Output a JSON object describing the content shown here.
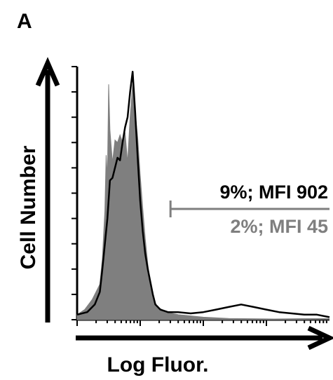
{
  "chart_data": {
    "type": "area",
    "panel_label": "A",
    "xlabel": "Log Fluor.",
    "ylabel": "Cell Number",
    "x_scale": "log",
    "colors": {
      "control_fill": "#7f7f7f",
      "gate_black": "#000000",
      "gate_gray": "#7f7f7f"
    },
    "series": [
      {
        "style": "filled-gray",
        "points": [
          [
            0.0,
            0.02
          ],
          [
            0.03,
            0.04
          ],
          [
            0.06,
            0.08
          ],
          [
            0.09,
            0.14
          ],
          [
            0.1,
            0.24
          ],
          [
            0.11,
            0.43
          ],
          [
            0.115,
            0.65
          ],
          [
            0.12,
            0.56
          ],
          [
            0.125,
            0.93
          ],
          [
            0.13,
            0.75
          ],
          [
            0.14,
            0.62
          ],
          [
            0.15,
            0.71
          ],
          [
            0.16,
            0.7
          ],
          [
            0.17,
            0.73
          ],
          [
            0.18,
            0.7
          ],
          [
            0.19,
            0.74
          ],
          [
            0.2,
            0.62
          ],
          [
            0.21,
            0.8
          ],
          [
            0.22,
            0.93
          ],
          [
            0.23,
            0.82
          ],
          [
            0.24,
            0.72
          ],
          [
            0.25,
            0.57
          ],
          [
            0.26,
            0.44
          ],
          [
            0.27,
            0.32
          ],
          [
            0.28,
            0.22
          ],
          [
            0.29,
            0.14
          ],
          [
            0.3,
            0.08
          ],
          [
            0.32,
            0.05
          ],
          [
            0.35,
            0.03
          ],
          [
            0.4,
            0.02
          ],
          [
            0.5,
            0.01
          ],
          [
            0.6,
            0.005
          ],
          [
            1.0,
            0.0
          ]
        ]
      },
      {
        "style": "black-outline",
        "points": [
          [
            0.0,
            0.02
          ],
          [
            0.04,
            0.03
          ],
          [
            0.07,
            0.06
          ],
          [
            0.09,
            0.11
          ],
          [
            0.1,
            0.2
          ],
          [
            0.11,
            0.3
          ],
          [
            0.12,
            0.4
          ],
          [
            0.13,
            0.55
          ],
          [
            0.14,
            0.56
          ],
          [
            0.15,
            0.6
          ],
          [
            0.16,
            0.64
          ],
          [
            0.17,
            0.63
          ],
          [
            0.18,
            0.7
          ],
          [
            0.19,
            0.76
          ],
          [
            0.2,
            0.8
          ],
          [
            0.21,
            0.9
          ],
          [
            0.22,
            0.98
          ],
          [
            0.23,
            0.82
          ],
          [
            0.24,
            0.64
          ],
          [
            0.25,
            0.47
          ],
          [
            0.26,
            0.35
          ],
          [
            0.27,
            0.26
          ],
          [
            0.28,
            0.2
          ],
          [
            0.29,
            0.15
          ],
          [
            0.3,
            0.1
          ],
          [
            0.31,
            0.06
          ],
          [
            0.33,
            0.04
          ],
          [
            0.36,
            0.03
          ],
          [
            0.4,
            0.03
          ],
          [
            0.45,
            0.025
          ],
          [
            0.5,
            0.03
          ],
          [
            0.55,
            0.04
          ],
          [
            0.6,
            0.05
          ],
          [
            0.65,
            0.06
          ],
          [
            0.7,
            0.05
          ],
          [
            0.75,
            0.04
          ],
          [
            0.8,
            0.03
          ],
          [
            0.85,
            0.025
          ],
          [
            0.9,
            0.02
          ],
          [
            0.95,
            0.02
          ],
          [
            1.0,
            0.01
          ]
        ]
      }
    ],
    "gate": {
      "x_range": [
        0.37,
        1.0
      ],
      "labels": [
        {
          "text": "9%; MFI 902",
          "color": "#000000"
        },
        {
          "text": "2%; MFI 45",
          "color": "#7f7f7f"
        }
      ]
    }
  }
}
